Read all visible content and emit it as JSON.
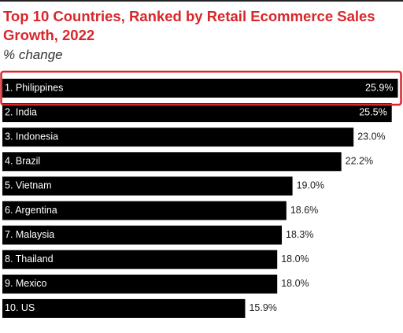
{
  "chart_data": {
    "type": "bar",
    "orientation": "horizontal",
    "title": "Top 10 Countries, Ranked by Retail Ecommerce Sales Growth, 2022",
    "subtitle": "% change",
    "categories": [
      "1. Philippines",
      "2. India",
      "3. Indonesia",
      "4. Brazil",
      "5. Vietnam",
      "6. Argentina",
      "7. Malaysia",
      "8. Thailand",
      "9. Mexico",
      "10. US"
    ],
    "values": [
      25.9,
      25.5,
      23.0,
      22.2,
      19.0,
      18.6,
      18.3,
      18.0,
      18.0,
      15.9
    ],
    "value_labels": [
      "25.9%",
      "25.5%",
      "23.0%",
      "22.2%",
      "19.0%",
      "18.6%",
      "18.3%",
      "18.0%",
      "18.0%",
      "15.9%"
    ],
    "color": "#000000",
    "highlight_color": "#d9262b",
    "title_color": "#d9262b"
  }
}
